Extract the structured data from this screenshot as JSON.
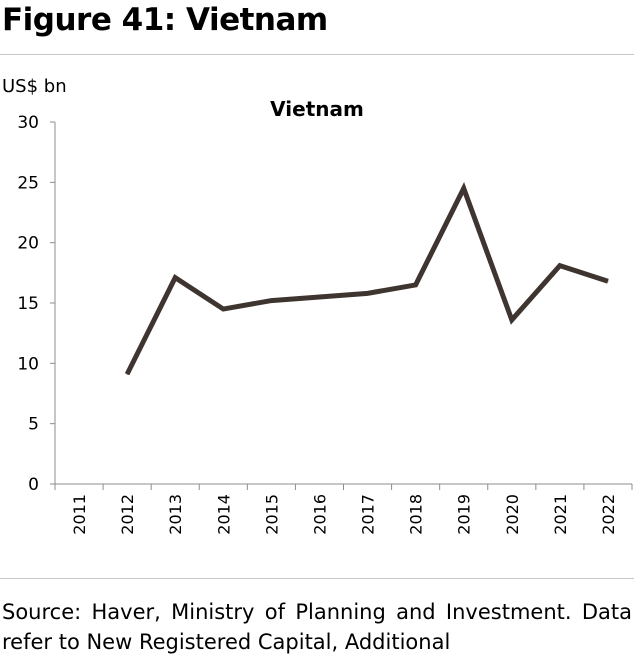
{
  "figure_title": "Figure 41: Vietnam",
  "source_text": "Source: Haver, Ministry of Planning and Investment. Data refer to New Registered Capital, Additional",
  "chart_data": {
    "type": "line",
    "title": "Vietnam",
    "ylabel": "US$ bn",
    "xlabel": "",
    "categories": [
      "2011",
      "2012",
      "2013",
      "2014",
      "2015",
      "2016",
      "2017",
      "2018",
      "2019",
      "2020",
      "2021",
      "2022"
    ],
    "series": [
      {
        "values": [
          null,
          9.1,
          17.1,
          14.5,
          15.2,
          15.5,
          15.8,
          16.5,
          24.5,
          13.6,
          18.1,
          16.8
        ]
      }
    ],
    "ylim": [
      0,
      30
    ],
    "yticks": [
      0,
      5,
      10,
      15,
      20,
      25,
      30
    ],
    "grid": false,
    "legend": "none",
    "line_color": "#3f3530"
  }
}
